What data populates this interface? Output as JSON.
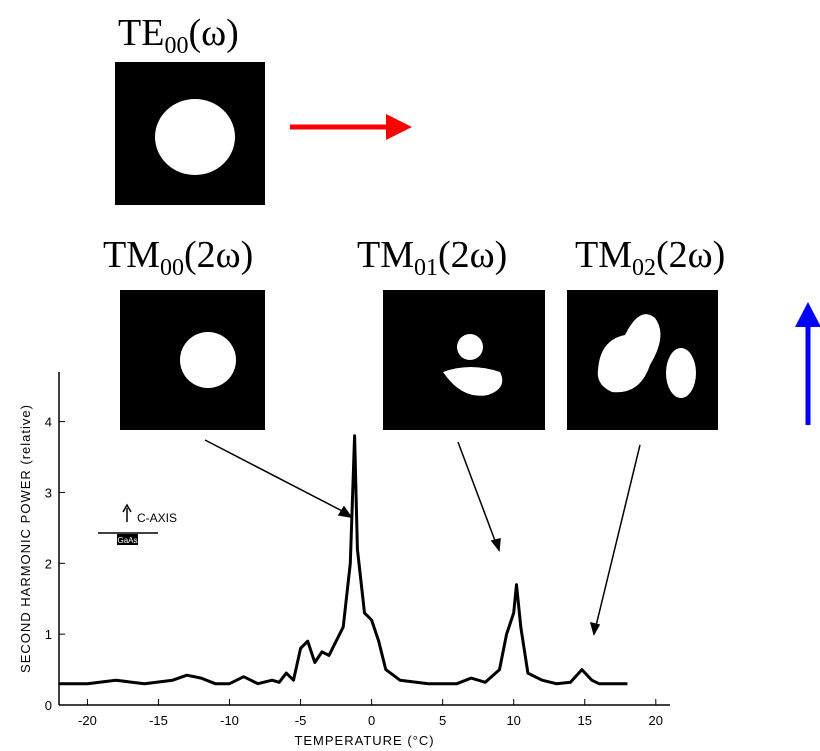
{
  "modes": [
    {
      "base": "TE",
      "sub": "00",
      "arg": "(ω)"
    },
    {
      "base": "TM",
      "sub": "00",
      "arg": "(2ω)"
    },
    {
      "base": "TM",
      "sub": "01",
      "arg": "(2ω)"
    },
    {
      "base": "TM",
      "sub": "02",
      "arg": "(2ω)"
    }
  ],
  "inset": {
    "axis_label": "C-AXIS",
    "crystal_label": "GaAs"
  },
  "chart_data": {
    "type": "line",
    "xlabel": "TEMPERATURE (°C)",
    "ylabel": "SECOND HARMONIC POWER (relative)",
    "xlim": [
      -22,
      21
    ],
    "ylim": [
      0,
      4.7
    ],
    "xticks": [
      -20,
      -15,
      -10,
      -5,
      0,
      5,
      10,
      15,
      20
    ],
    "yticks": [
      0,
      1,
      2,
      3,
      4
    ],
    "series": [
      {
        "color": "#000000",
        "x": [
          -22,
          -20,
          -18,
          -16,
          -14,
          -13,
          -12,
          -11,
          -10,
          -9,
          -8.5,
          -8,
          -7,
          -6.5,
          -6,
          -5.5,
          -5,
          -4.5,
          -4,
          -3.5,
          -3,
          -2.5,
          -2,
          -1.5,
          -1.2,
          -1,
          -0.5,
          0,
          0.5,
          1,
          2,
          4,
          6,
          7,
          8,
          9,
          9.5,
          10,
          10.2,
          10.5,
          11,
          12,
          13,
          14,
          14.8,
          15.5,
          16,
          17,
          18
        ],
        "values": [
          0.3,
          0.3,
          0.35,
          0.3,
          0.35,
          0.42,
          0.38,
          0.3,
          0.3,
          0.4,
          0.35,
          0.3,
          0.35,
          0.32,
          0.45,
          0.35,
          0.8,
          0.9,
          0.6,
          0.75,
          0.7,
          0.9,
          1.1,
          2.0,
          3.8,
          2.2,
          1.3,
          1.2,
          0.9,
          0.5,
          0.35,
          0.3,
          0.3,
          0.38,
          0.32,
          0.5,
          1.0,
          1.3,
          1.7,
          1.1,
          0.45,
          0.35,
          0.3,
          0.32,
          0.5,
          0.35,
          0.3,
          0.3,
          0.3
        ]
      }
    ]
  }
}
